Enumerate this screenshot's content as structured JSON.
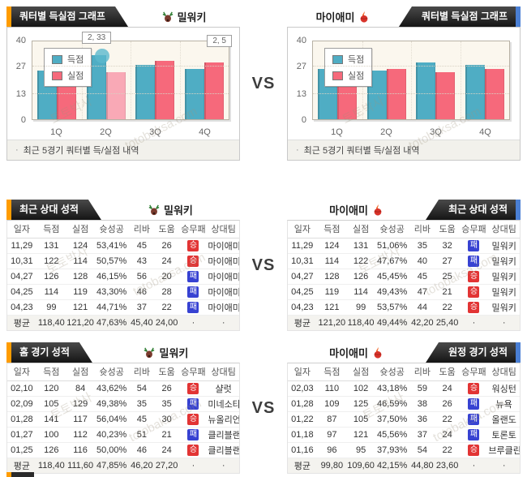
{
  "vs_label": "VS",
  "watermark": {
    "korean": "토토박사",
    "domain": "totobaksa.com"
  },
  "teams": {
    "left": {
      "name": "밀워키"
    },
    "right": {
      "name": "마이애미"
    }
  },
  "sections": {
    "charts": {
      "caption_bullet": "·",
      "caption": "최근 5경기 쿼터별 득/실점 내역",
      "left": {
        "tab": "쿼터별 득실점 그래프"
      },
      "right": {
        "tab": "쿼터별 득실점 그래프"
      }
    },
    "h2h": {
      "left": {
        "tab": "최근 상대 성적"
      },
      "right": {
        "tab": "최근 상대 성적"
      }
    },
    "form": {
      "left": {
        "tab": "홈 경기 성적"
      },
      "right": {
        "tab": "원정 경기 성적"
      }
    }
  },
  "chart_data": [
    {
      "type": "bar",
      "title": "쿼터별 득실점 그래프 - 밀워키",
      "categories": [
        "1Q",
        "2Q",
        "3Q",
        "4Q"
      ],
      "series": [
        {
          "name": "득점",
          "color": "#4fadc4",
          "values": [
            25,
            33,
            28,
            26
          ]
        },
        {
          "name": "실점",
          "color": "#f6697b",
          "values": [
            29,
            24,
            30,
            29
          ]
        }
      ],
      "ylim": [
        0,
        40
      ],
      "yticks": [
        0,
        13,
        27,
        40
      ],
      "legend_position": "top-left",
      "grid": true,
      "highlight": {
        "series_index": 1,
        "index": 1,
        "color": "#f9a9b6"
      },
      "annotations": [
        {
          "text": "2, 33"
        },
        {
          "text": "2, 5"
        }
      ]
    },
    {
      "type": "bar",
      "title": "쿼터별 득실점 그래프 - 마이애미",
      "categories": [
        "1Q",
        "2Q",
        "3Q",
        "4Q"
      ],
      "series": [
        {
          "name": "득점",
          "color": "#4fadc4",
          "values": [
            26,
            25,
            29,
            28
          ]
        },
        {
          "name": "실점",
          "color": "#f6697b",
          "values": [
            25,
            26,
            24,
            26
          ]
        }
      ],
      "ylim": [
        0,
        40
      ],
      "yticks": [
        0,
        13,
        27,
        40
      ],
      "legend_position": "top-left",
      "grid": true,
      "annotations": []
    }
  ],
  "tables": [
    {
      "tab": "최근 상대 성적",
      "team": "밀워키",
      "headers": [
        "일자",
        "득점",
        "실점",
        "슛성공",
        "리바",
        "도움",
        "승무패",
        "상대팀"
      ],
      "rows": [
        {
          "cells": [
            "11,29",
            "131",
            "124",
            "53,41%",
            "45",
            "26",
            "승",
            "마이애미"
          ],
          "result": "win"
        },
        {
          "cells": [
            "10,31",
            "122",
            "114",
            "50,57%",
            "43",
            "24",
            "승",
            "마이애미"
          ],
          "result": "win"
        },
        {
          "cells": [
            "04,27",
            "126",
            "128",
            "46,15%",
            "56",
            "20",
            "패",
            "마이애미"
          ],
          "result": "loss"
        },
        {
          "cells": [
            "04,25",
            "114",
            "119",
            "43,30%",
            "46",
            "28",
            "패",
            "마이애미"
          ],
          "result": "loss"
        },
        {
          "cells": [
            "04,23",
            "99",
            "121",
            "44,71%",
            "37",
            "22",
            "패",
            "마이애미"
          ],
          "result": "loss"
        }
      ],
      "average": [
        "평균",
        "118,40",
        "121,20",
        "47,63%",
        "45,40",
        "24,00",
        "·",
        "·"
      ]
    },
    {
      "tab": "최근 상대 성적",
      "team": "마이애미",
      "headers": [
        "일자",
        "득점",
        "실점",
        "슛성공",
        "리바",
        "도움",
        "승무패",
        "상대팀"
      ],
      "rows": [
        {
          "cells": [
            "11,29",
            "124",
            "131",
            "51,06%",
            "35",
            "32",
            "패",
            "밀워키"
          ],
          "result": "loss"
        },
        {
          "cells": [
            "10,31",
            "114",
            "122",
            "47,67%",
            "40",
            "27",
            "패",
            "밀워키"
          ],
          "result": "loss"
        },
        {
          "cells": [
            "04,27",
            "128",
            "126",
            "45,45%",
            "45",
            "25",
            "승",
            "밀워키"
          ],
          "result": "win"
        },
        {
          "cells": [
            "04,25",
            "119",
            "114",
            "49,43%",
            "47",
            "21",
            "승",
            "밀워키"
          ],
          "result": "win"
        },
        {
          "cells": [
            "04,23",
            "121",
            "99",
            "53,57%",
            "44",
            "22",
            "승",
            "밀워키"
          ],
          "result": "win"
        }
      ],
      "average": [
        "평균",
        "121,20",
        "118,40",
        "49,44%",
        "42,20",
        "25,40",
        "·",
        "·"
      ]
    },
    {
      "tab": "홈 경기 성적",
      "team": "밀워키",
      "headers": [
        "일자",
        "득점",
        "실점",
        "슛성공",
        "리바",
        "도움",
        "승무패",
        "상대팀"
      ],
      "rows": [
        {
          "cells": [
            "02,10",
            "120",
            "84",
            "43,62%",
            "54",
            "26",
            "승",
            "샬럿"
          ],
          "result": "win"
        },
        {
          "cells": [
            "02,09",
            "105",
            "129",
            "49,38%",
            "35",
            "35",
            "패",
            "미네소타"
          ],
          "result": "loss"
        },
        {
          "cells": [
            "01,28",
            "141",
            "117",
            "56,04%",
            "45",
            "30",
            "승",
            "뉴올리언"
          ],
          "result": "win"
        },
        {
          "cells": [
            "01,27",
            "100",
            "112",
            "40,23%",
            "51",
            "21",
            "패",
            "클리블랜"
          ],
          "result": "loss"
        },
        {
          "cells": [
            "01,25",
            "126",
            "116",
            "50,00%",
            "46",
            "24",
            "승",
            "클리블랜"
          ],
          "result": "win"
        }
      ],
      "average": [
        "평균",
        "118,40",
        "111,60",
        "47,85%",
        "46,20",
        "27,20",
        "·",
        "·"
      ]
    },
    {
      "tab": "원정 경기 성적",
      "team": "마이애미",
      "headers": [
        "일자",
        "득점",
        "실점",
        "슛성공",
        "리바",
        "도움",
        "승무패",
        "상대팀"
      ],
      "rows": [
        {
          "cells": [
            "02,03",
            "110",
            "102",
            "43,18%",
            "59",
            "24",
            "승",
            "워싱턴"
          ],
          "result": "win"
        },
        {
          "cells": [
            "01,28",
            "109",
            "125",
            "46,59%",
            "38",
            "26",
            "패",
            "뉴욕"
          ],
          "result": "loss"
        },
        {
          "cells": [
            "01,22",
            "87",
            "105",
            "37,50%",
            "36",
            "22",
            "패",
            "올랜도"
          ],
          "result": "loss"
        },
        {
          "cells": [
            "01,18",
            "97",
            "121",
            "45,56%",
            "37",
            "24",
            "패",
            "토론토"
          ],
          "result": "loss"
        },
        {
          "cells": [
            "01,16",
            "96",
            "95",
            "37,93%",
            "54",
            "22",
            "승",
            "브루클린"
          ],
          "result": "win"
        }
      ],
      "average": [
        "평균",
        "99,80",
        "109,60",
        "42,15%",
        "44,80",
        "23,60",
        "·",
        "·"
      ]
    }
  ]
}
